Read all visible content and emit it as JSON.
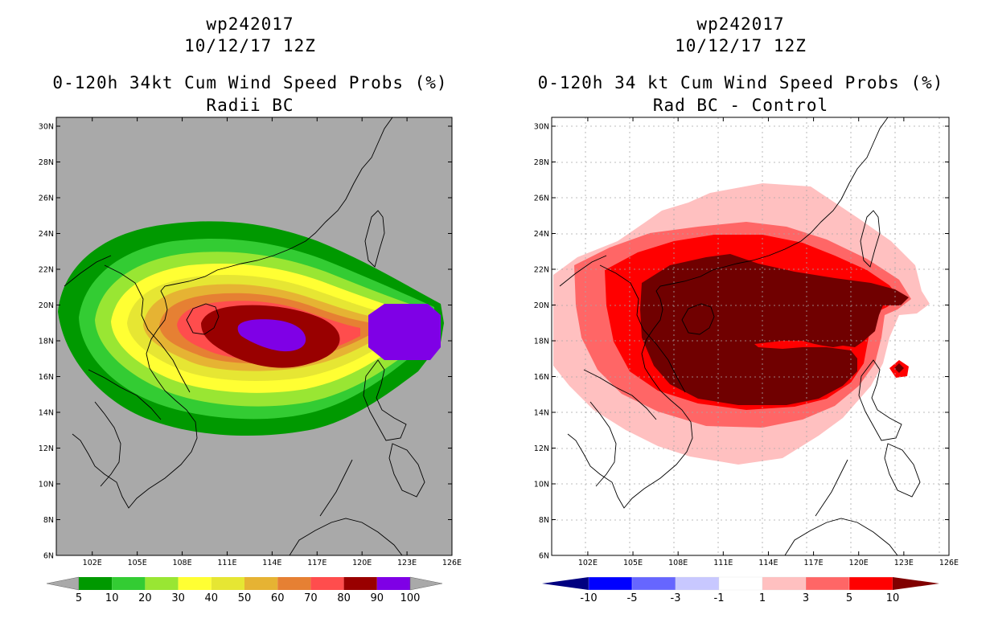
{
  "left_panel": {
    "title_line1": "wp242017",
    "title_line2": "10/12/17 12Z",
    "title_line3": "0-120h 34kt Cum Wind Speed Probs (%)",
    "title_line4": "Radii BC",
    "background_color": "#a9a9a9",
    "y_ticks": [
      "30N",
      "28N",
      "26N",
      "24N",
      "22N",
      "20N",
      "18N",
      "16N",
      "14N",
      "12N",
      "10N",
      "8N",
      "6N"
    ],
    "x_ticks": [
      "102E",
      "105E",
      "108E",
      "111E",
      "114E",
      "117E",
      "120E",
      "123E",
      "126E"
    ],
    "colorbar": {
      "labels": [
        "5",
        "10",
        "20",
        "30",
        "40",
        "50",
        "60",
        "70",
        "80",
        "90",
        "100"
      ],
      "colors": [
        "#009900",
        "#33cc33",
        "#99e633",
        "#ffff33",
        "#e6e633",
        "#e6b333",
        "#e68033",
        "#ff4d4d",
        "#990000",
        "#7f00e6"
      ],
      "end_color": "#a9a9a9"
    }
  },
  "right_panel": {
    "title_line1": "wp242017",
    "title_line2": "10/12/17 12Z",
    "title_line3": "0-120h 34 kt Cum Wind Speed Probs (%)",
    "title_line4": "Rad BC - Control",
    "background_color": "#ffffff",
    "y_ticks": [
      "30N",
      "28N",
      "26N",
      "24N",
      "22N",
      "20N",
      "18N",
      "16N",
      "14N",
      "12N",
      "10N",
      "8N",
      "6N"
    ],
    "x_ticks": [
      "102E",
      "105E",
      "108E",
      "111E",
      "114E",
      "117E",
      "120E",
      "123E",
      "126E"
    ],
    "colorbar": {
      "labels": [
        "-10",
        "-5",
        "-3",
        "-1",
        "1",
        "3",
        "5",
        "10"
      ],
      "colors": [
        "#0000ff",
        "#6666ff",
        "#c8c8ff",
        "#ffffff",
        "#ffc0c0",
        "#ff6666",
        "#ff0000"
      ],
      "low_end_color": "#000080",
      "high_end_color": "#800000"
    }
  },
  "colors": {
    "coast": "#000000",
    "grid": "#a8a8a8",
    "diff_ring_light": "#ffc0c0",
    "diff_ring_mid": "#ff6666",
    "diff_ring_strong": "#ff0000",
    "diff_core": "#700000"
  }
}
